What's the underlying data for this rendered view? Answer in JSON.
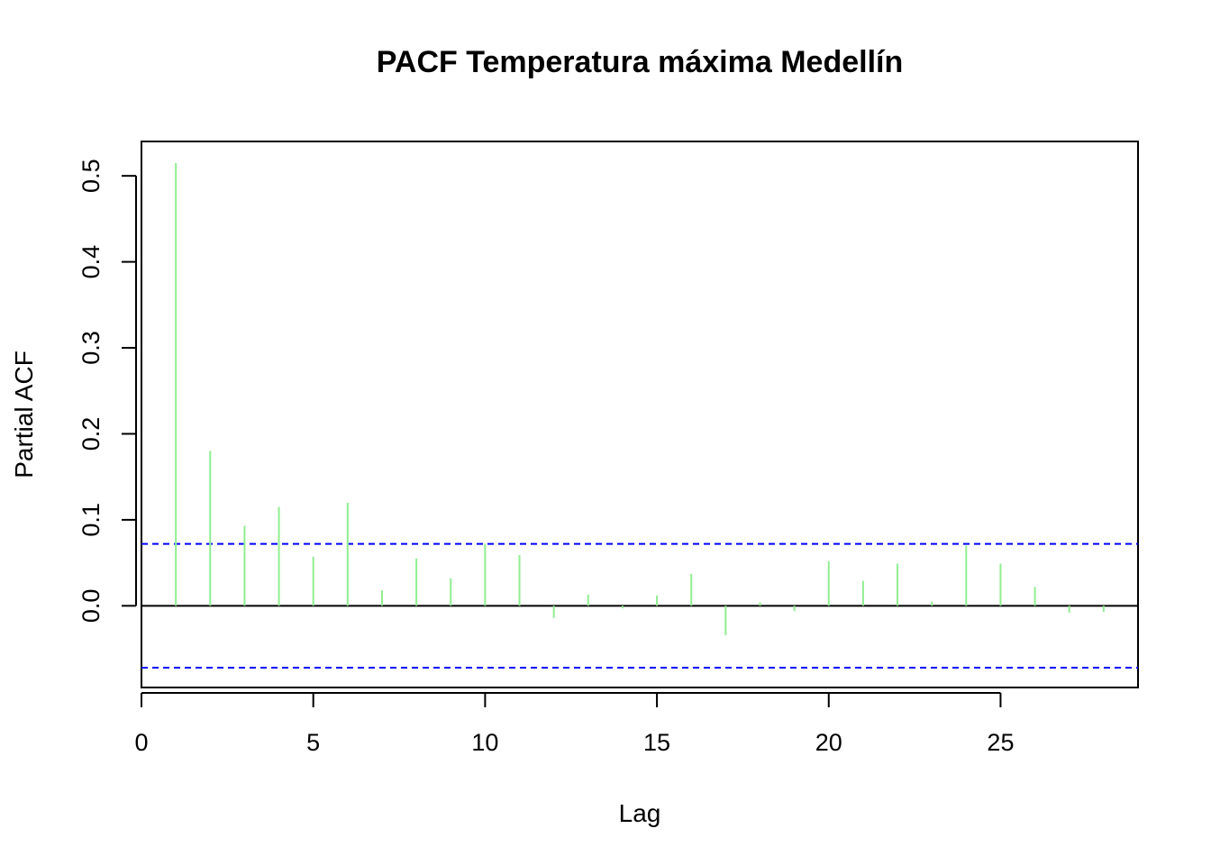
{
  "chart_data": {
    "type": "bar",
    "title": "PACF Temperatura máxima Medellín",
    "xlabel": "Lag",
    "ylabel": "Partial ACF",
    "xlim": [
      0,
      29
    ],
    "ylim": [
      -0.095,
      0.54
    ],
    "x_ticks": [
      0,
      5,
      10,
      15,
      20,
      25
    ],
    "y_ticks": [
      0.0,
      0.1,
      0.2,
      0.3,
      0.4,
      0.5
    ],
    "y_tick_labels": [
      "0.0",
      "0.1",
      "0.2",
      "0.3",
      "0.4",
      "0.5"
    ],
    "lags": [
      1,
      2,
      3,
      4,
      5,
      6,
      7,
      8,
      9,
      10,
      11,
      12,
      13,
      14,
      15,
      16,
      17,
      18,
      19,
      20,
      21,
      22,
      23,
      24,
      25,
      26,
      27,
      28
    ],
    "values": [
      0.515,
      0.18,
      0.093,
      0.115,
      0.057,
      0.12,
      0.018,
      0.055,
      0.032,
      0.072,
      0.059,
      -0.014,
      0.013,
      -0.003,
      0.012,
      0.037,
      -0.034,
      0.004,
      -0.006,
      0.052,
      0.029,
      0.049,
      0.005,
      0.07,
      0.049,
      0.022,
      -0.008,
      -0.007
    ],
    "confidence_bound": 0.072,
    "bar_color": "#90EE90",
    "bound_color": "#0000ff",
    "grid": false
  }
}
